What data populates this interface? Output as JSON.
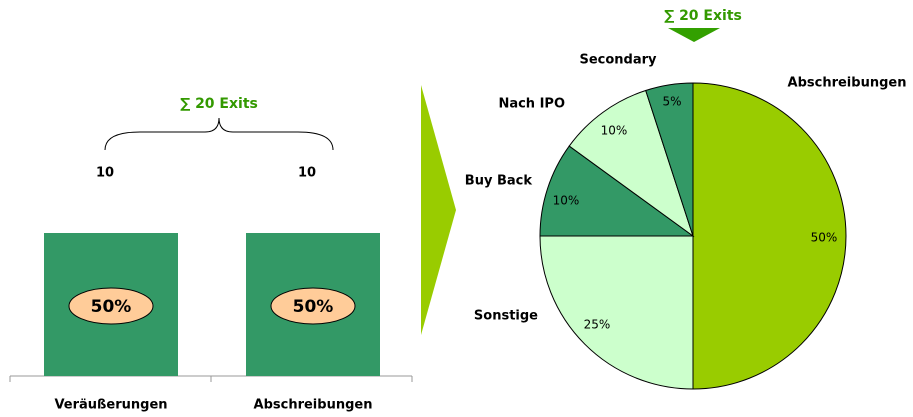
{
  "chart_data": [
    {
      "type": "bar",
      "annotation": "∑ 20 Exits",
      "categories": [
        "Veräußerungen",
        "Abschreibungen"
      ],
      "values": [
        10,
        10
      ],
      "shares": [
        50,
        50
      ],
      "share_labels": [
        "50%",
        "50%"
      ],
      "color": "#339966",
      "label_color": "#ffcc99"
    },
    {
      "type": "pie",
      "annotation": "∑ 20 Exits",
      "categories": [
        "Abschreibungen",
        "Sonstige",
        "Buy Back",
        "Nach IPO",
        "Secondary"
      ],
      "values": [
        50,
        25,
        10,
        10,
        5
      ],
      "value_labels": [
        "50%",
        "25%",
        "10%",
        "10%",
        "5%"
      ],
      "colors": [
        "#99cc00",
        "#ccffcc",
        "#339966",
        "#ccffcc",
        "#339966"
      ]
    }
  ]
}
